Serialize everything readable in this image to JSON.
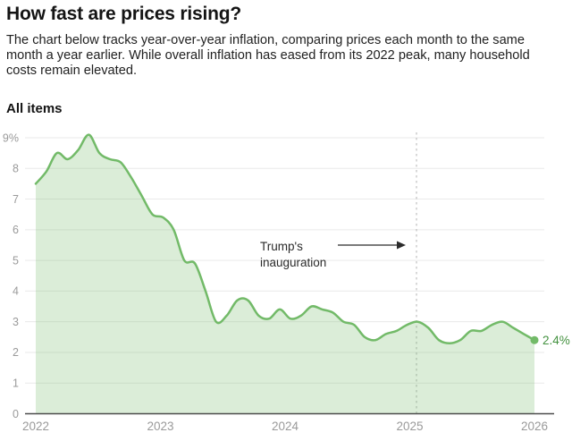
{
  "header": {
    "title": "How fast are prices rising?",
    "description": "The chart below tracks year-over-year inflation, comparing prices each month to the same month a year earlier. While overall inflation has eased from its 2022 peak, many household costs remain elevated.",
    "series_label": "All items"
  },
  "colors": {
    "line": "#72ba68",
    "fill": "rgba(114,186,104,0.26)",
    "end_dot": "#72ba68",
    "end_label_text": "#43913f",
    "axis_text": "#9a9a9a",
    "gridline": "#eaeaea",
    "axis_line": "#4d4d4d",
    "dashed_line": "#b3b3b3",
    "annotation_text": "#2b2b2b",
    "arrow": "#2b2b2b"
  },
  "chart_data": {
    "type": "area",
    "title": "All items",
    "x_unit": "month",
    "x_start": "2022-01",
    "x_end": "2025-12",
    "values": [
      7.5,
      7.9,
      8.5,
      8.3,
      8.6,
      9.1,
      8.5,
      8.3,
      8.2,
      7.7,
      7.1,
      6.5,
      6.4,
      6.0,
      5.0,
      4.9,
      4.0,
      3.0,
      3.2,
      3.7,
      3.7,
      3.2,
      3.1,
      3.4,
      3.1,
      3.2,
      3.5,
      3.4,
      3.3,
      3.0,
      2.9,
      2.5,
      2.4,
      2.6,
      2.7,
      2.9,
      3.0,
      2.8,
      2.4,
      2.3,
      2.4,
      2.7,
      2.7,
      2.9,
      3.0,
      2.8,
      2.6,
      2.4
    ],
    "x_ticks": [
      "2022",
      "2023",
      "2024",
      "2025",
      "2026"
    ],
    "y_tick_labels": [
      "9%",
      "8",
      "7",
      "6",
      "5",
      "4",
      "3",
      "2",
      "1",
      "0"
    ],
    "ylim": [
      0,
      9.3
    ],
    "grid": true,
    "legend": "none",
    "end_point_label": "2.4%",
    "end_point_value": 2.4,
    "annotation": {
      "line1": "Trump's",
      "line2": "inauguration",
      "marker": "dashed vertical line at Jan 20, 2025 with arrow pointing to it"
    }
  }
}
